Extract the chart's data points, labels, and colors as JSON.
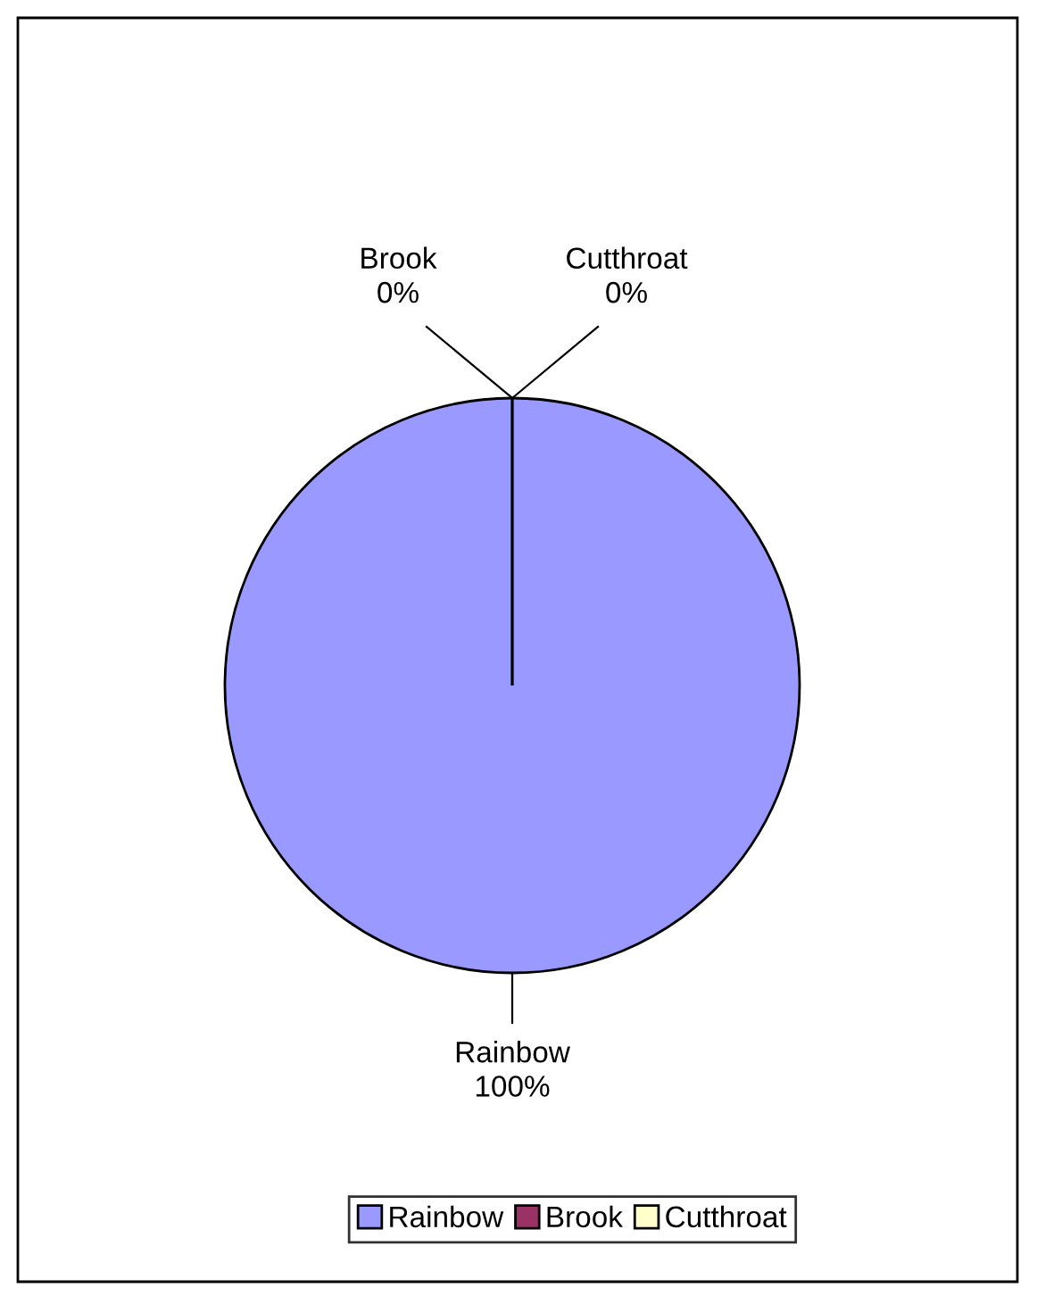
{
  "chart_data": {
    "type": "pie",
    "categories": [
      "Rainbow",
      "Brook",
      "Cutthroat"
    ],
    "values": [
      100,
      0,
      0
    ],
    "colors": [
      "#9999ff",
      "#993366",
      "#ffffcc"
    ],
    "value_labels": [
      "100%",
      "0%",
      "0%"
    ],
    "legend": "bottom"
  }
}
